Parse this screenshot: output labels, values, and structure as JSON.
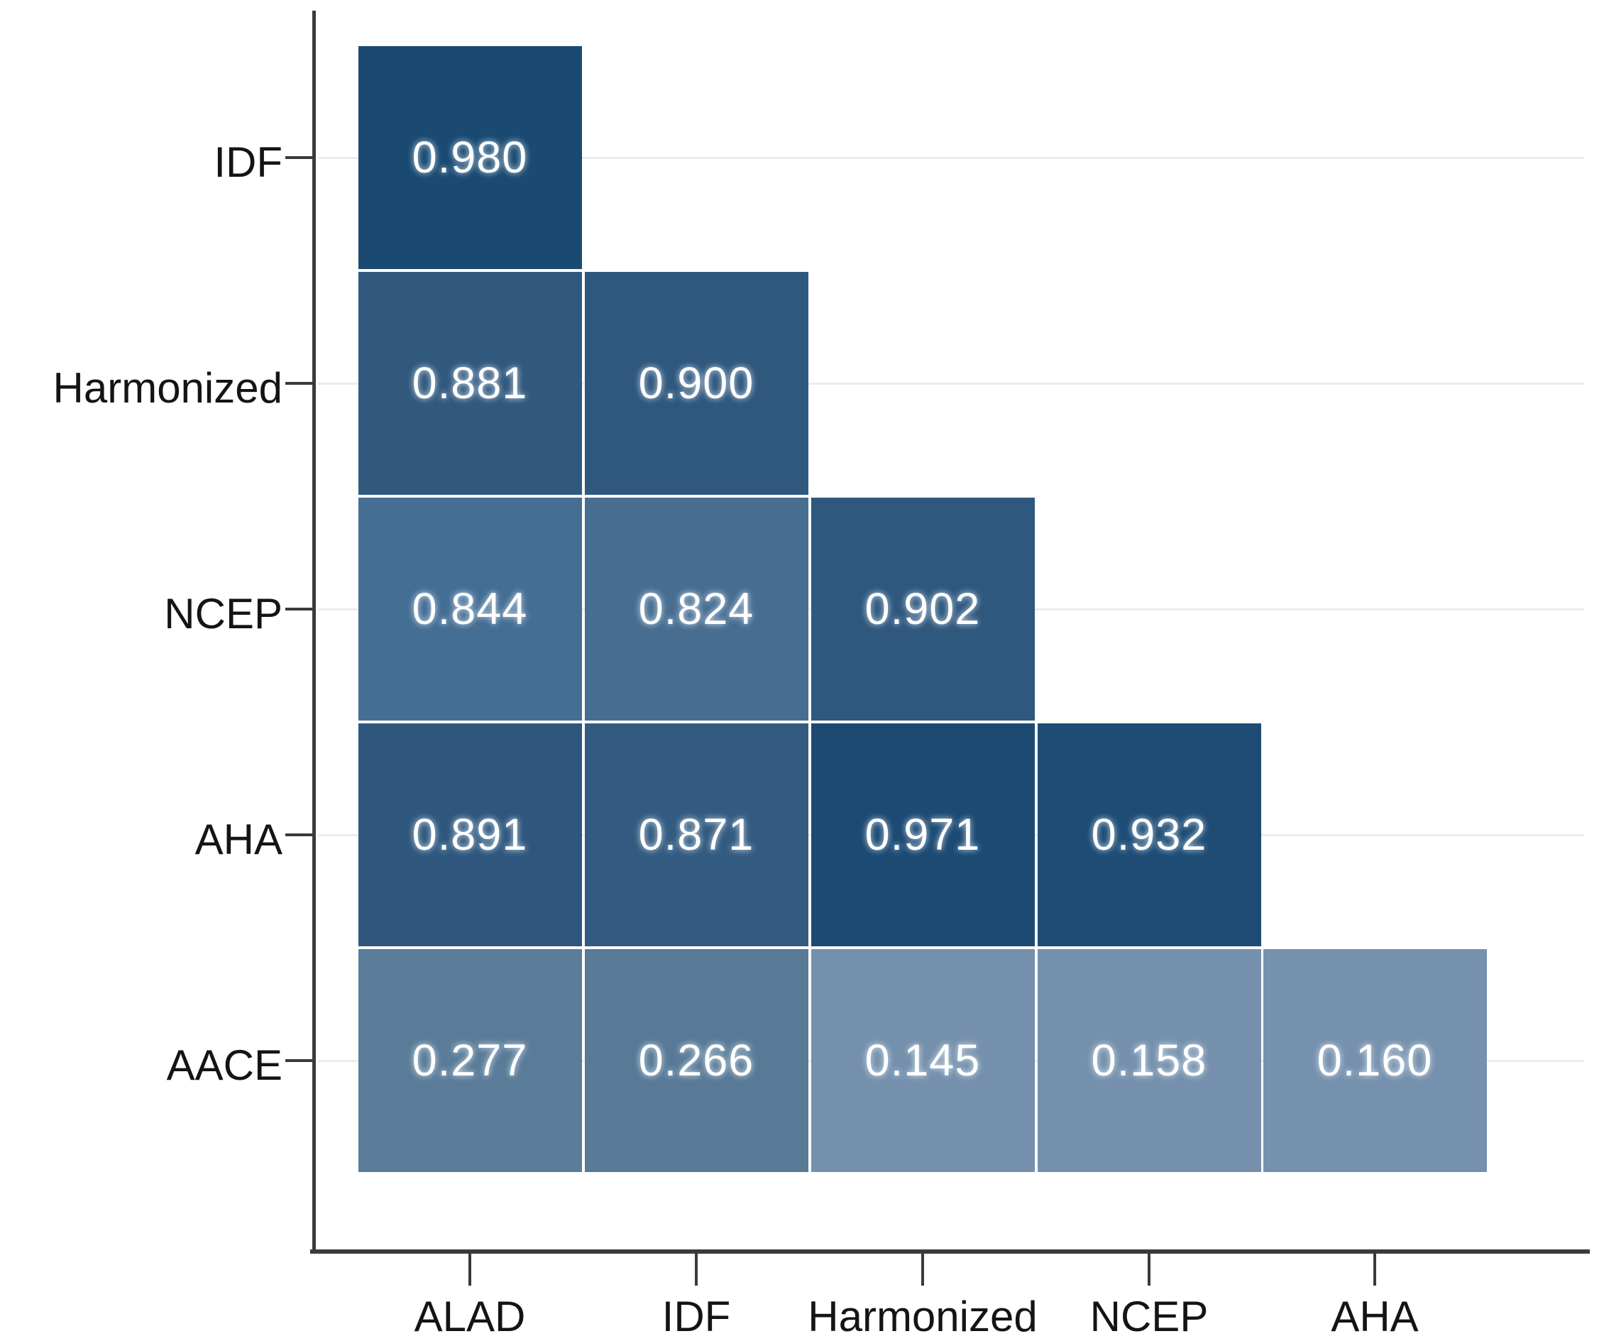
{
  "chart_data": {
    "type": "heatmap",
    "title": "",
    "xlabel": "",
    "ylabel": "",
    "legend": "none",
    "grid": "horizontal-light",
    "shape": "lower-triangular correlation matrix",
    "x_categories": [
      "ALAD",
      "IDF",
      "Harmonized",
      "NCEP",
      "AHA"
    ],
    "y_categories": [
      "IDF",
      "Harmonized",
      "NCEP",
      "AHA",
      "AACE"
    ],
    "value_text_color": "#ffffff",
    "color_scale": {
      "low_value_color": "#7691ad",
      "high_value_color": "#1a4a72"
    },
    "rows": [
      {
        "y": "IDF",
        "cells": [
          {
            "x": "ALAD",
            "value": 0.98,
            "label": "0.980",
            "color": "#1a4a72"
          }
        ]
      },
      {
        "y": "Harmonized",
        "cells": [
          {
            "x": "ALAD",
            "value": 0.881,
            "label": "0.881",
            "color": "#31597e"
          },
          {
            "x": "IDF",
            "value": 0.9,
            "label": "0.900",
            "color": "#2f587e"
          }
        ]
      },
      {
        "y": "NCEP",
        "cells": [
          {
            "x": "ALAD",
            "value": 0.844,
            "label": "0.844",
            "color": "#456e94"
          },
          {
            "x": "IDF",
            "value": 0.824,
            "label": "0.824",
            "color": "#476e91"
          },
          {
            "x": "Harmonized",
            "value": 0.902,
            "label": "0.902",
            "color": "#2f587e"
          }
        ]
      },
      {
        "y": "AHA",
        "cells": [
          {
            "x": "ALAD",
            "value": 0.891,
            "label": "0.891",
            "color": "#2f577d"
          },
          {
            "x": "IDF",
            "value": 0.871,
            "label": "0.871",
            "color": "#335b81"
          },
          {
            "x": "Harmonized",
            "value": 0.971,
            "label": "0.971",
            "color": "#1c4a73"
          },
          {
            "x": "NCEP",
            "value": 0.932,
            "label": "0.932",
            "color": "#1e4c75"
          }
        ]
      },
      {
        "y": "AACE",
        "cells": [
          {
            "x": "ALAD",
            "value": 0.277,
            "label": "0.277",
            "color": "#5a7c99"
          },
          {
            "x": "IDF",
            "value": 0.266,
            "label": "0.266",
            "color": "#587a97"
          },
          {
            "x": "Harmonized",
            "value": 0.145,
            "label": "0.145",
            "color": "#7590ac"
          },
          {
            "x": "NCEP",
            "value": 0.158,
            "label": "0.158",
            "color": "#7590ac"
          },
          {
            "x": "AHA",
            "value": 0.16,
            "label": "0.160",
            "color": "#7691ad"
          }
        ]
      }
    ]
  }
}
